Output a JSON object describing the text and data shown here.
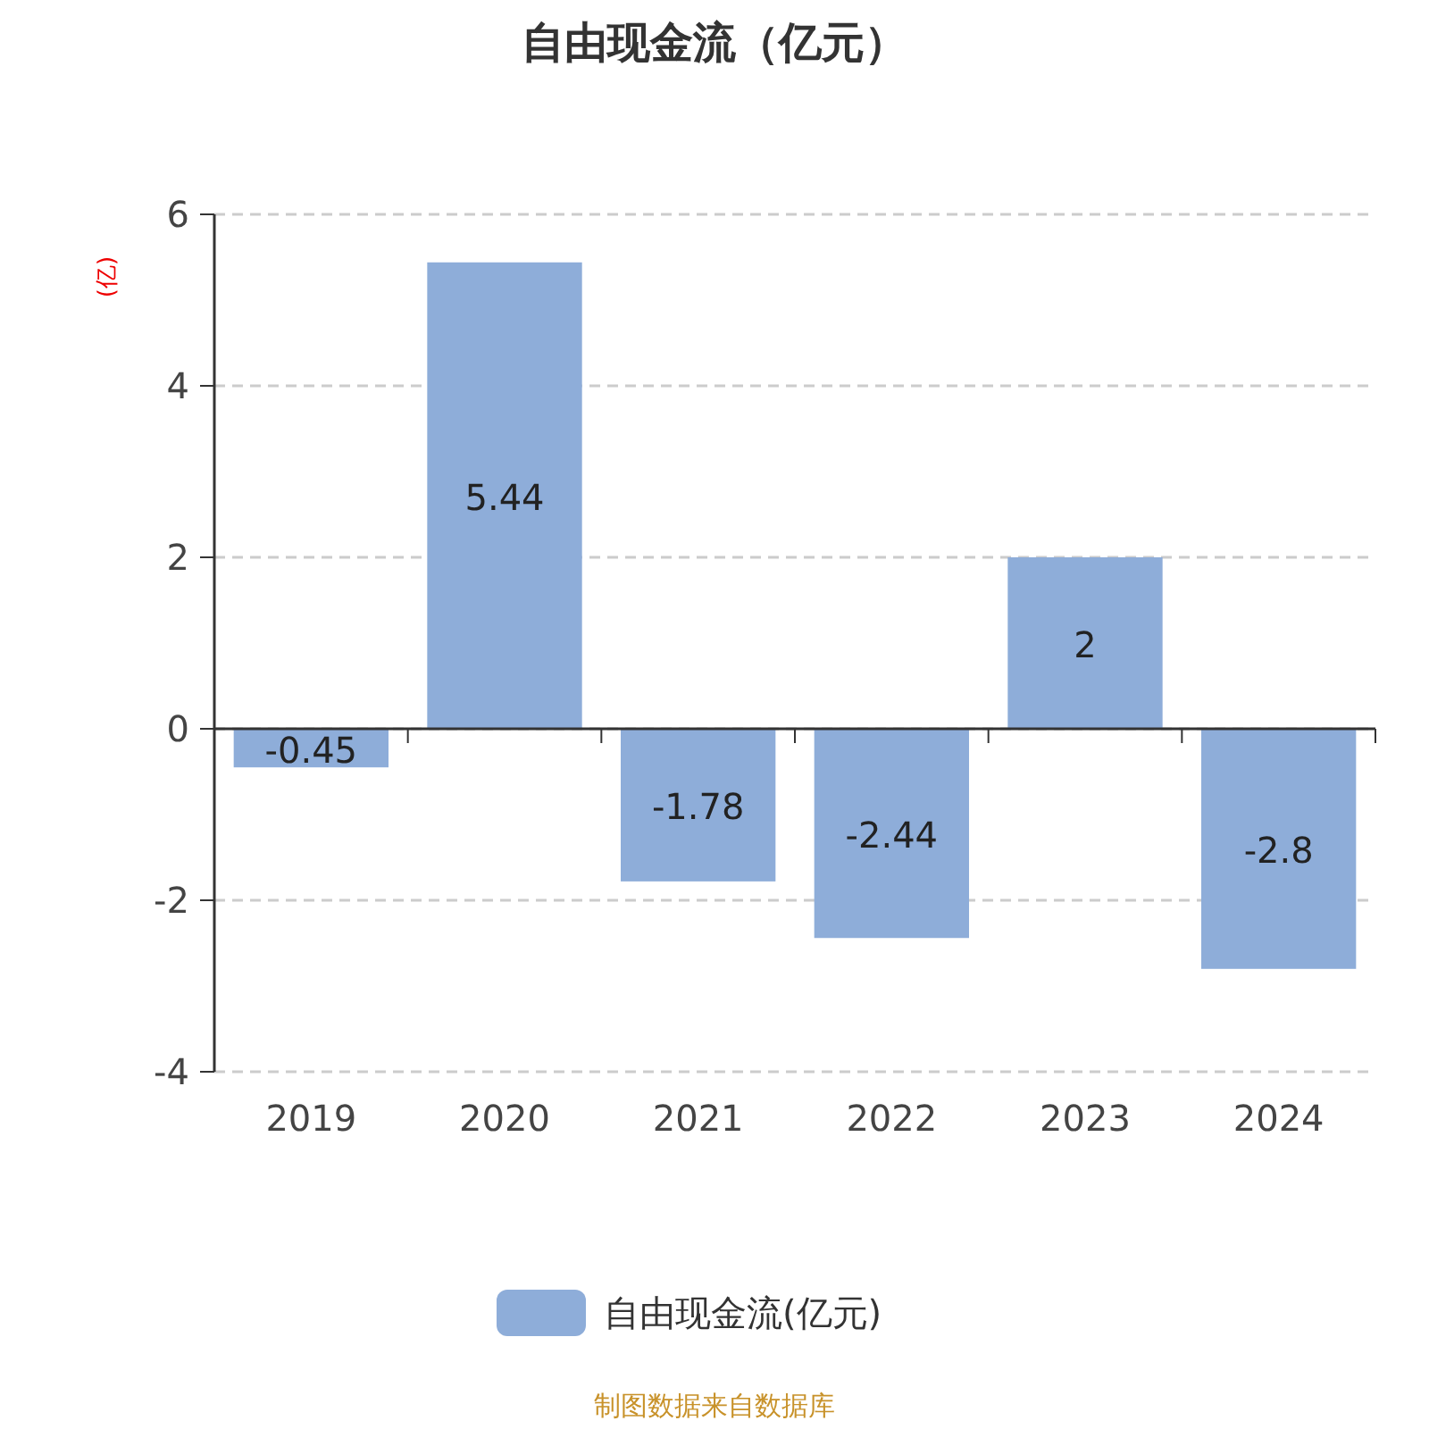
{
  "chart_data": {
    "type": "bar",
    "title": "自由现金流（亿元）",
    "ylabel": "(亿)",
    "categories": [
      "2019",
      "2020",
      "2021",
      "2022",
      "2023",
      "2024"
    ],
    "series": [
      {
        "name": "自由现金流(亿元)",
        "color": "#8eadd9",
        "values": [
          -0.45,
          5.44,
          -1.78,
          -2.44,
          2,
          -2.8
        ]
      }
    ],
    "ylim": [
      -4,
      6
    ],
    "yticks": [
      -4,
      -2,
      0,
      2,
      4,
      6
    ],
    "grid": "y",
    "legend": "bottom",
    "data_labels": true,
    "annotations": [
      "制图数据来自数据库"
    ]
  }
}
